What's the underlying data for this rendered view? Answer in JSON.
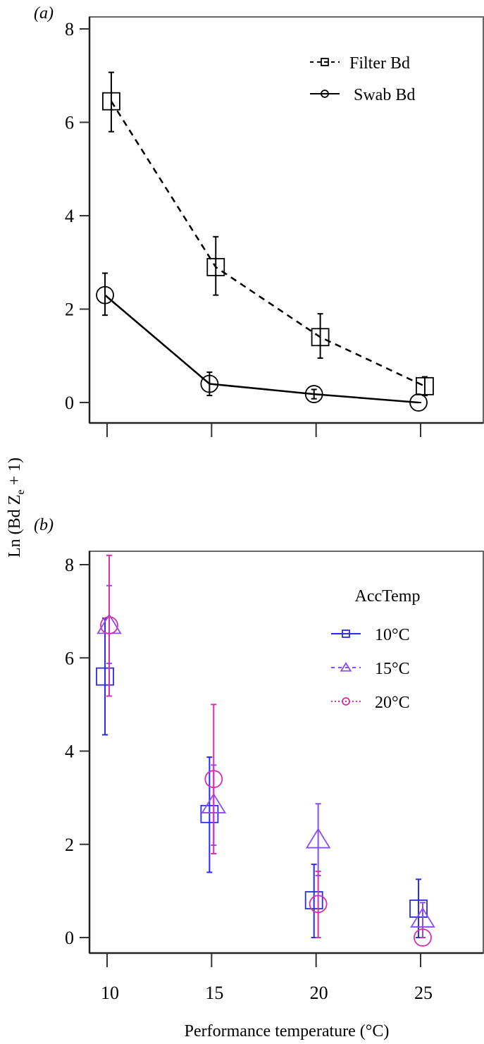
{
  "ylabel_common": "Ln (Bd Z",
  "ylabel_sub": "e",
  "ylabel_tail": " + 1)",
  "chart_data": [
    {
      "type": "line",
      "panel_label": "(a)",
      "x": [
        10,
        15,
        20,
        25
      ],
      "ylim": [
        0,
        8
      ],
      "yticks": [
        0,
        2,
        4,
        6,
        8
      ],
      "legend_position": "top-right",
      "legend_title": "",
      "series": [
        {
          "name": "Filter Bd",
          "marker": "square",
          "line": "dashed",
          "color": "#000000",
          "values": [
            6.45,
            2.9,
            1.4,
            0.35
          ],
          "err_low": [
            5.8,
            2.3,
            0.95,
            0.15
          ],
          "err_high": [
            7.07,
            3.55,
            1.9,
            0.55
          ],
          "offset": 0.2
        },
        {
          "name": "Swab Bd",
          "marker": "circle",
          "line": "solid",
          "color": "#000000",
          "values": [
            2.3,
            0.4,
            0.18,
            0.0
          ],
          "err_low": [
            1.87,
            0.15,
            0.08,
            0.0
          ],
          "err_high": [
            2.77,
            0.65,
            0.28,
            0.0
          ],
          "offset": -0.1
        }
      ]
    },
    {
      "type": "scatter",
      "panel_label": "(b)",
      "x": [
        10,
        15,
        20,
        25
      ],
      "xticks": [
        10,
        15,
        20,
        25
      ],
      "xlabel": "Performance temperature (°C)",
      "ylim": [
        0,
        8
      ],
      "yticks": [
        0,
        2,
        4,
        6,
        8
      ],
      "legend_position": "top-right",
      "legend_title": "AccTemp",
      "series": [
        {
          "name": "10°C",
          "marker": "square",
          "line": "solid",
          "color": "#2a2af0",
          "values": [
            5.6,
            2.65,
            0.8,
            0.62
          ],
          "err_low": [
            4.35,
            1.4,
            0.0,
            0.0
          ],
          "err_high": [
            6.85,
            3.87,
            1.57,
            1.25
          ],
          "offset": -0.1
        },
        {
          "name": "15°C",
          "marker": "triangle",
          "line": "dashed",
          "color": "#8a4cf5",
          "values": [
            6.7,
            2.85,
            2.1,
            0.4
          ],
          "err_low": [
            5.88,
            1.98,
            1.33,
            0.0
          ],
          "err_high": [
            7.55,
            3.7,
            2.87,
            0.75
          ],
          "offset": 0.1
        },
        {
          "name": "20°C",
          "marker": "circle",
          "line": "dotted",
          "color": "#d52fb0",
          "values": [
            6.7,
            3.4,
            0.72,
            0.0
          ],
          "err_low": [
            5.18,
            1.8,
            0.0,
            0.0
          ],
          "err_high": [
            8.2,
            5.0,
            1.42,
            0.0
          ],
          "offset": 0.1
        }
      ]
    }
  ]
}
